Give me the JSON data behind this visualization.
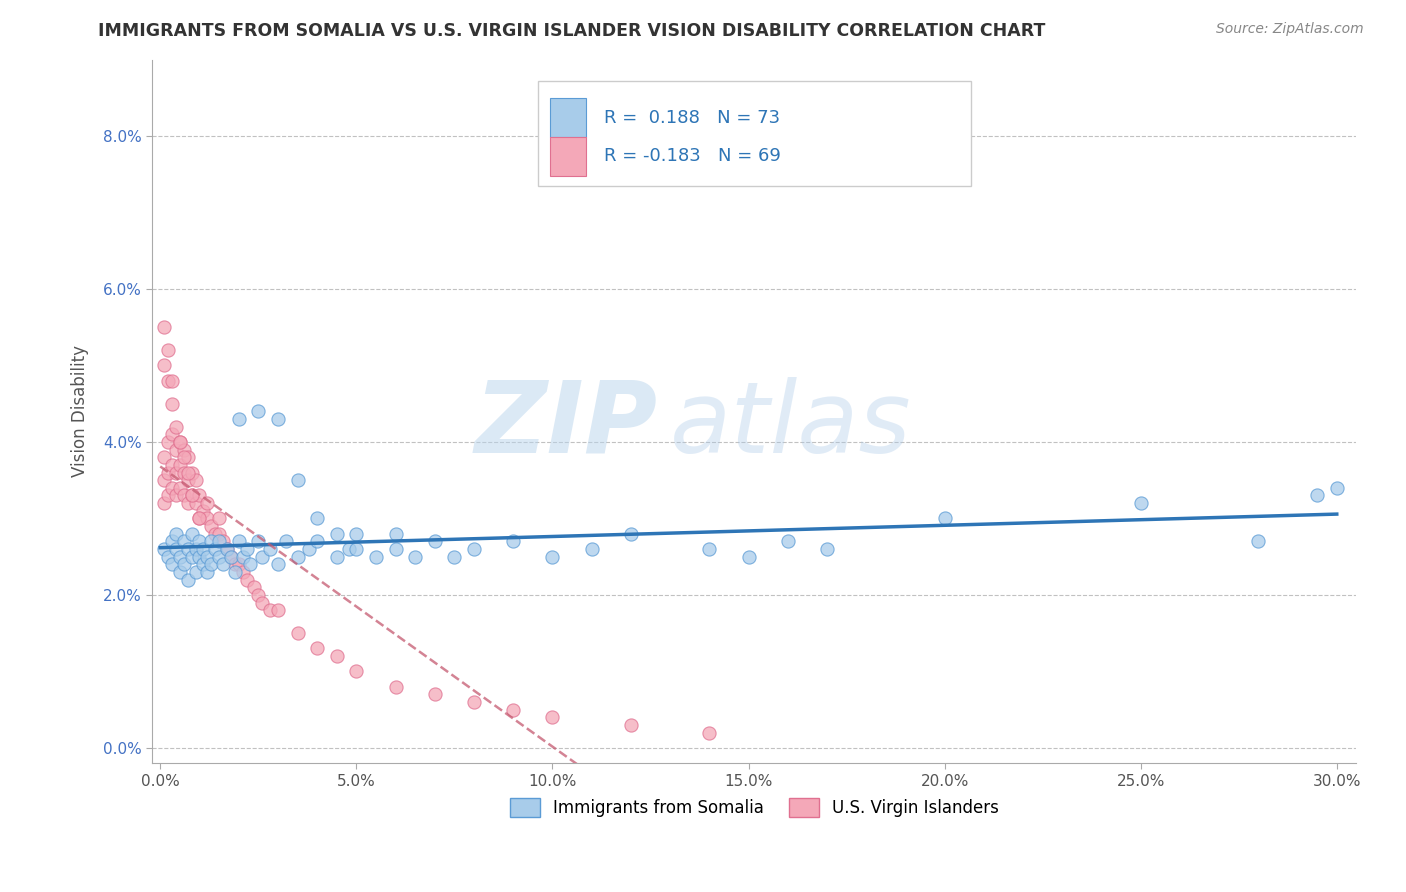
{
  "title": "IMMIGRANTS FROM SOMALIA VS U.S. VIRGIN ISLANDER VISION DISABILITY CORRELATION CHART",
  "source": "Source: ZipAtlas.com",
  "ylabel": "Vision Disability",
  "legend_label_1": "Immigrants from Somalia",
  "legend_label_2": "U.S. Virgin Islanders",
  "R1": 0.188,
  "N1": 73,
  "R2": -0.183,
  "N2": 69,
  "xlim": [
    -0.002,
    0.305
  ],
  "ylim": [
    -0.002,
    0.09
  ],
  "xticks": [
    0.0,
    0.05,
    0.1,
    0.15,
    0.2,
    0.25,
    0.3
  ],
  "yticks": [
    0.0,
    0.02,
    0.04,
    0.06,
    0.08
  ],
  "color_blue": "#A8CCEA",
  "color_pink": "#F4A8B8",
  "edge_blue": "#5B9BD5",
  "edge_pink": "#E07090",
  "trend_blue": "#2E75B6",
  "trend_pink": "#C55A70",
  "watermark_zip": "ZIP",
  "watermark_atlas": "atlas",
  "background": "#FFFFFF",
  "grid_color": "#BBBBBB",
  "blue_scatter_x": [
    0.001,
    0.002,
    0.003,
    0.003,
    0.004,
    0.004,
    0.005,
    0.005,
    0.006,
    0.006,
    0.007,
    0.007,
    0.008,
    0.008,
    0.009,
    0.009,
    0.01,
    0.01,
    0.011,
    0.011,
    0.012,
    0.012,
    0.013,
    0.013,
    0.014,
    0.015,
    0.015,
    0.016,
    0.017,
    0.018,
    0.019,
    0.02,
    0.021,
    0.022,
    0.023,
    0.025,
    0.026,
    0.028,
    0.03,
    0.032,
    0.035,
    0.038,
    0.04,
    0.045,
    0.048,
    0.05,
    0.055,
    0.06,
    0.065,
    0.07,
    0.075,
    0.08,
    0.09,
    0.1,
    0.11,
    0.12,
    0.14,
    0.15,
    0.16,
    0.17,
    0.02,
    0.025,
    0.03,
    0.035,
    0.04,
    0.045,
    0.05,
    0.06,
    0.2,
    0.25,
    0.28,
    0.295,
    0.3
  ],
  "blue_scatter_y": [
    0.026,
    0.025,
    0.027,
    0.024,
    0.026,
    0.028,
    0.025,
    0.023,
    0.027,
    0.024,
    0.026,
    0.022,
    0.028,
    0.025,
    0.026,
    0.023,
    0.025,
    0.027,
    0.024,
    0.026,
    0.025,
    0.023,
    0.027,
    0.024,
    0.026,
    0.025,
    0.027,
    0.024,
    0.026,
    0.025,
    0.023,
    0.027,
    0.025,
    0.026,
    0.024,
    0.027,
    0.025,
    0.026,
    0.024,
    0.027,
    0.025,
    0.026,
    0.027,
    0.025,
    0.026,
    0.028,
    0.025,
    0.026,
    0.025,
    0.027,
    0.025,
    0.026,
    0.027,
    0.025,
    0.026,
    0.028,
    0.026,
    0.025,
    0.027,
    0.026,
    0.043,
    0.044,
    0.043,
    0.035,
    0.03,
    0.028,
    0.026,
    0.028,
    0.03,
    0.032,
    0.027,
    0.033,
    0.034
  ],
  "pink_scatter_x": [
    0.001,
    0.001,
    0.001,
    0.002,
    0.002,
    0.002,
    0.003,
    0.003,
    0.003,
    0.004,
    0.004,
    0.004,
    0.005,
    0.005,
    0.005,
    0.006,
    0.006,
    0.006,
    0.007,
    0.007,
    0.007,
    0.008,
    0.008,
    0.009,
    0.009,
    0.01,
    0.01,
    0.011,
    0.012,
    0.012,
    0.013,
    0.014,
    0.015,
    0.015,
    0.016,
    0.017,
    0.018,
    0.019,
    0.02,
    0.021,
    0.022,
    0.024,
    0.025,
    0.026,
    0.028,
    0.03,
    0.035,
    0.04,
    0.045,
    0.05,
    0.06,
    0.07,
    0.08,
    0.09,
    0.1,
    0.12,
    0.14,
    0.001,
    0.001,
    0.002,
    0.002,
    0.003,
    0.003,
    0.004,
    0.005,
    0.006,
    0.007,
    0.008,
    0.01
  ],
  "pink_scatter_y": [
    0.032,
    0.035,
    0.038,
    0.033,
    0.036,
    0.04,
    0.034,
    0.037,
    0.041,
    0.033,
    0.036,
    0.039,
    0.034,
    0.037,
    0.04,
    0.033,
    0.036,
    0.039,
    0.032,
    0.035,
    0.038,
    0.033,
    0.036,
    0.032,
    0.035,
    0.03,
    0.033,
    0.031,
    0.03,
    0.032,
    0.029,
    0.028,
    0.028,
    0.03,
    0.027,
    0.026,
    0.025,
    0.024,
    0.024,
    0.023,
    0.022,
    0.021,
    0.02,
    0.019,
    0.018,
    0.018,
    0.015,
    0.013,
    0.012,
    0.01,
    0.008,
    0.007,
    0.006,
    0.005,
    0.004,
    0.003,
    0.002,
    0.05,
    0.055,
    0.048,
    0.052,
    0.045,
    0.048,
    0.042,
    0.04,
    0.038,
    0.036,
    0.033,
    0.03
  ]
}
